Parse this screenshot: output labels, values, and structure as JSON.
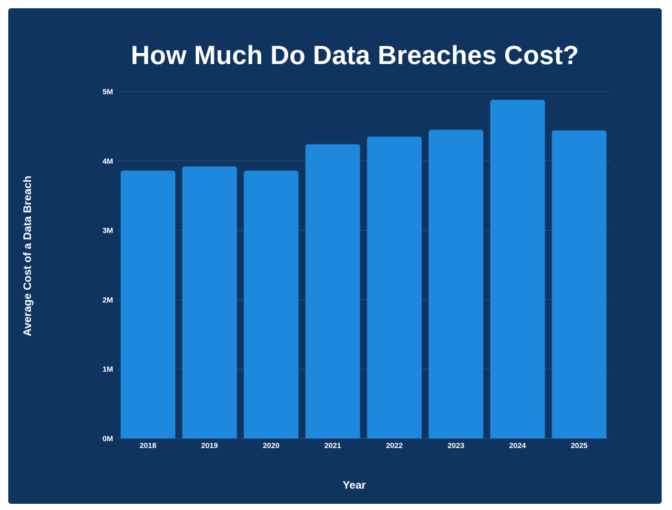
{
  "chart_data": {
    "type": "bar",
    "title": "How Much Do Data Breaches Cost?",
    "xlabel": "Year",
    "ylabel": "Average Cost of a Data Breach",
    "categories": [
      "2018",
      "2019",
      "2020",
      "2021",
      "2022",
      "2023",
      "2024",
      "2025"
    ],
    "values": [
      3860000,
      3920000,
      3860000,
      4240000,
      4350000,
      4450000,
      4880000,
      4440000
    ],
    "ylim": [
      0,
      5000000
    ],
    "yticks": [
      {
        "value": 0,
        "label": "0M"
      },
      {
        "value": 1000000,
        "label": "1M"
      },
      {
        "value": 2000000,
        "label": "2M"
      },
      {
        "value": 3000000,
        "label": "3M"
      },
      {
        "value": 4000000,
        "label": "4M"
      },
      {
        "value": 5000000,
        "label": "5M"
      }
    ],
    "grid": true,
    "legend": "none",
    "colors": {
      "background": "#0f3460",
      "bar": "#1e88dd",
      "grid": "#2a4c7a",
      "text": "#ffffff"
    }
  }
}
